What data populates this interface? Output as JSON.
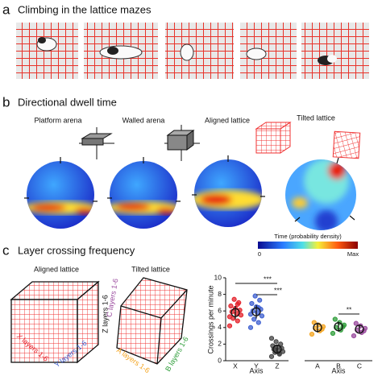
{
  "panel_a": {
    "letter": "a",
    "title": "Climbing in the lattice mazes"
  },
  "panel_b": {
    "letter": "b",
    "title": "Directional dwell time",
    "arenas": [
      "Platform arena",
      "Walled arena",
      "Aligned lattice",
      "Tilted lattice"
    ],
    "colorbar": {
      "label": "Time (probability density)",
      "min": 0,
      "max": "Max"
    }
  },
  "panel_c": {
    "letter": "c",
    "title": "Layer crossing frequency",
    "cubes": [
      {
        "label": "Aligned lattice",
        "axes": [
          "X layers 1-6",
          "Y layers 1-6",
          "Z layers 1-6"
        ]
      },
      {
        "label": "Tilted lattice",
        "axes": [
          "A layers 1-6",
          "B layers 1-6",
          "C layers 1-6"
        ]
      }
    ]
  },
  "chart_data": {
    "type": "strip",
    "y_label": "Crossings per minute",
    "x_labels": [
      "Axis",
      "Axis"
    ],
    "categories": [
      "X",
      "Y",
      "Z",
      "A",
      "B",
      "C"
    ],
    "colors": [
      "#e4222b",
      "#3d5fd0",
      "#444444",
      "#f4a41f",
      "#2f9e3a",
      "#9a4a9e"
    ],
    "means": [
      5.8,
      5.9,
      1.4,
      4.0,
      4.1,
      3.8
    ],
    "errors": [
      0.8,
      0.8,
      0.4,
      0.6,
      0.6,
      0.5
    ],
    "points": [
      [
        4.2,
        4.8,
        5.1,
        5.5,
        5.7,
        5.9,
        6.1,
        6.3,
        6.6,
        7.0,
        7.4,
        5.3,
        6.8
      ],
      [
        4.0,
        4.6,
        5.0,
        5.4,
        5.8,
        6.0,
        6.2,
        6.5,
        6.9,
        7.3,
        7.8,
        5.6,
        6.4
      ],
      [
        0.5,
        0.8,
        1.0,
        1.1,
        1.2,
        1.4,
        1.5,
        1.6,
        1.8,
        2.0,
        2.3,
        2.7,
        0.9,
        1.3
      ],
      [
        3.2,
        3.6,
        3.9,
        4.1,
        4.3,
        4.6,
        3.8
      ],
      [
        3.3,
        3.7,
        4.0,
        4.3,
        4.6,
        5.0,
        4.1
      ],
      [
        3.0,
        3.4,
        3.7,
        3.9,
        4.2,
        4.5,
        3.6
      ]
    ],
    "ylim": [
      0,
      10
    ],
    "yticks": [
      0,
      2,
      4,
      6,
      8,
      10
    ],
    "significance": [
      "***",
      "***",
      "**"
    ]
  }
}
